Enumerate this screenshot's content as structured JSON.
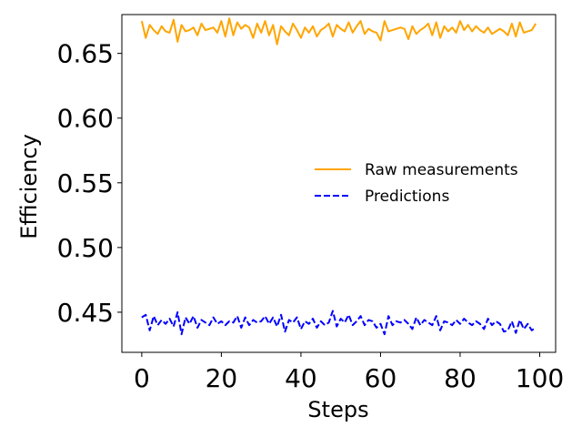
{
  "chart_data": {
    "type": "line",
    "title": "",
    "xlabel": "Steps",
    "ylabel": "Efficiency",
    "xlim": [
      -5,
      104
    ],
    "ylim": [
      0.419,
      0.68
    ],
    "xticks": [
      0,
      20,
      40,
      60,
      80,
      100
    ],
    "yticks": [
      0.45,
      0.5,
      0.55,
      0.6,
      0.65
    ],
    "ytick_labels": [
      "0.45",
      "0.50",
      "0.55",
      "0.60",
      "0.65"
    ],
    "grid": false,
    "legend_position": "center-right",
    "series": [
      {
        "name": "Raw measurements",
        "color": "#FFA500",
        "style": "solid",
        "x": [
          0,
          1,
          2,
          3,
          4,
          5,
          6,
          7,
          8,
          9,
          10,
          11,
          12,
          13,
          14,
          15,
          16,
          17,
          18,
          19,
          20,
          21,
          22,
          23,
          24,
          25,
          26,
          27,
          28,
          29,
          30,
          31,
          32,
          33,
          34,
          35,
          36,
          37,
          38,
          39,
          40,
          41,
          42,
          43,
          44,
          45,
          46,
          47,
          48,
          49,
          50,
          51,
          52,
          53,
          54,
          55,
          56,
          57,
          58,
          59,
          60,
          61,
          62,
          63,
          64,
          65,
          66,
          67,
          68,
          69,
          70,
          71,
          72,
          73,
          74,
          75,
          76,
          77,
          78,
          79,
          80,
          81,
          82,
          83,
          84,
          85,
          86,
          87,
          88,
          89,
          90,
          91,
          92,
          93,
          94,
          95,
          96,
          97,
          98,
          99
        ],
        "values": [
          0.675,
          0.662,
          0.672,
          0.668,
          0.665,
          0.671,
          0.667,
          0.666,
          0.676,
          0.659,
          0.672,
          0.667,
          0.668,
          0.67,
          0.664,
          0.673,
          0.668,
          0.669,
          0.67,
          0.666,
          0.675,
          0.663,
          0.677,
          0.664,
          0.674,
          0.669,
          0.672,
          0.67,
          0.662,
          0.673,
          0.666,
          0.675,
          0.664,
          0.672,
          0.657,
          0.671,
          0.667,
          0.664,
          0.673,
          0.668,
          0.662,
          0.67,
          0.666,
          0.671,
          0.663,
          0.668,
          0.67,
          0.673,
          0.663,
          0.672,
          0.669,
          0.667,
          0.674,
          0.666,
          0.671,
          0.675,
          0.665,
          0.669,
          0.667,
          0.666,
          0.66,
          0.675,
          0.667,
          0.668,
          0.669,
          0.67,
          0.669,
          0.661,
          0.671,
          0.665,
          0.668,
          0.67,
          0.673,
          0.664,
          0.674,
          0.662,
          0.671,
          0.667,
          0.67,
          0.666,
          0.675,
          0.668,
          0.672,
          0.667,
          0.671,
          0.668,
          0.666,
          0.67,
          0.665,
          0.667,
          0.669,
          0.667,
          0.664,
          0.673,
          0.663,
          0.674,
          0.666,
          0.667,
          0.668,
          0.673
        ]
      },
      {
        "name": "Predictions",
        "color": "#0000FF",
        "style": "dashed",
        "x": [
          0,
          1,
          2,
          3,
          4,
          5,
          6,
          7,
          8,
          9,
          10,
          11,
          12,
          13,
          14,
          15,
          16,
          17,
          18,
          19,
          20,
          21,
          22,
          23,
          24,
          25,
          26,
          27,
          28,
          29,
          30,
          31,
          32,
          33,
          34,
          35,
          36,
          37,
          38,
          39,
          40,
          41,
          42,
          43,
          44,
          45,
          46,
          47,
          48,
          49,
          50,
          51,
          52,
          53,
          54,
          55,
          56,
          57,
          58,
          59,
          60,
          61,
          62,
          63,
          64,
          65,
          66,
          67,
          68,
          69,
          70,
          71,
          72,
          73,
          74,
          75,
          76,
          77,
          78,
          79,
          80,
          81,
          82,
          83,
          84,
          85,
          86,
          87,
          88,
          89,
          90,
          91,
          92,
          93,
          94,
          95,
          96,
          97,
          98,
          99
        ],
        "values": [
          0.446,
          0.448,
          0.436,
          0.447,
          0.44,
          0.444,
          0.441,
          0.445,
          0.439,
          0.45,
          0.433,
          0.446,
          0.441,
          0.447,
          0.438,
          0.444,
          0.442,
          0.44,
          0.446,
          0.441,
          0.443,
          0.44,
          0.443,
          0.442,
          0.447,
          0.438,
          0.446,
          0.44,
          0.444,
          0.442,
          0.443,
          0.447,
          0.441,
          0.446,
          0.439,
          0.448,
          0.435,
          0.444,
          0.442,
          0.446,
          0.437,
          0.443,
          0.441,
          0.445,
          0.438,
          0.443,
          0.44,
          0.442,
          0.451,
          0.439,
          0.445,
          0.442,
          0.448,
          0.44,
          0.443,
          0.447,
          0.44,
          0.444,
          0.443,
          0.438,
          0.441,
          0.433,
          0.447,
          0.44,
          0.443,
          0.442,
          0.444,
          0.441,
          0.437,
          0.446,
          0.44,
          0.444,
          0.442,
          0.44,
          0.447,
          0.436,
          0.443,
          0.442,
          0.44,
          0.444,
          0.441,
          0.445,
          0.442,
          0.44,
          0.443,
          0.441,
          0.437,
          0.445,
          0.44,
          0.443,
          0.441,
          0.435,
          0.436,
          0.443,
          0.434,
          0.444,
          0.437,
          0.441,
          0.436,
          0.438
        ]
      }
    ]
  }
}
